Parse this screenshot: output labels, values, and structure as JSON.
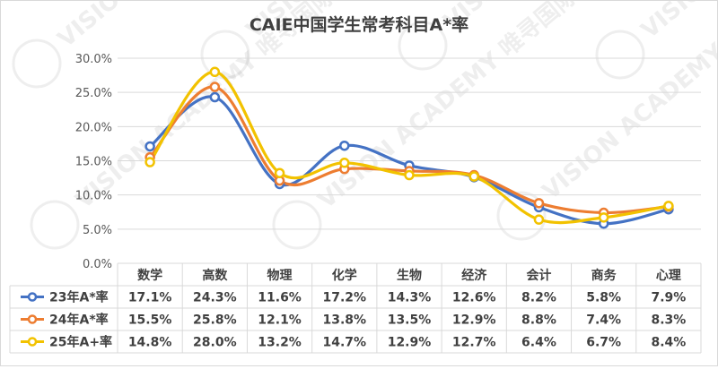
{
  "chart_data": {
    "type": "line",
    "title": "CAIE中国学生常考科目A*率",
    "categories": [
      "数学",
      "高数",
      "物理",
      "化学",
      "生物",
      "经济",
      "会计",
      "商务",
      "心理"
    ],
    "ylim": [
      0,
      30
    ],
    "yticks": [
      "0.0%",
      "5.0%",
      "10.0%",
      "15.0%",
      "20.0%",
      "25.0%",
      "30.0%"
    ],
    "grid": true,
    "legend": "data-table-bottom",
    "series": [
      {
        "name": "23年A*率",
        "color": "#4472c4",
        "values": [
          17.1,
          24.3,
          11.6,
          17.2,
          14.3,
          12.6,
          8.2,
          5.8,
          7.9
        ],
        "labels": [
          "17.1%",
          "24.3%",
          "11.6%",
          "17.2%",
          "14.3%",
          "12.6%",
          "8.2%",
          "5.8%",
          "7.9%"
        ]
      },
      {
        "name": "24年A*率",
        "color": "#ed7d31",
        "values": [
          15.5,
          25.8,
          12.1,
          13.8,
          13.5,
          12.9,
          8.8,
          7.4,
          8.3
        ],
        "labels": [
          "15.5%",
          "25.8%",
          "12.1%",
          "13.8%",
          "13.5%",
          "12.9%",
          "8.8%",
          "7.4%",
          "8.3%"
        ]
      },
      {
        "name": "25年A+率",
        "color": "#f2c200",
        "values": [
          14.8,
          28.0,
          13.2,
          14.7,
          12.9,
          12.7,
          6.4,
          6.7,
          8.4
        ],
        "labels": [
          "14.8%",
          "28.0%",
          "13.2%",
          "14.7%",
          "12.9%",
          "12.7%",
          "6.4%",
          "6.7%",
          "8.4%"
        ]
      }
    ],
    "watermark": "VISION ACADEMY 唯寻国际教育"
  }
}
